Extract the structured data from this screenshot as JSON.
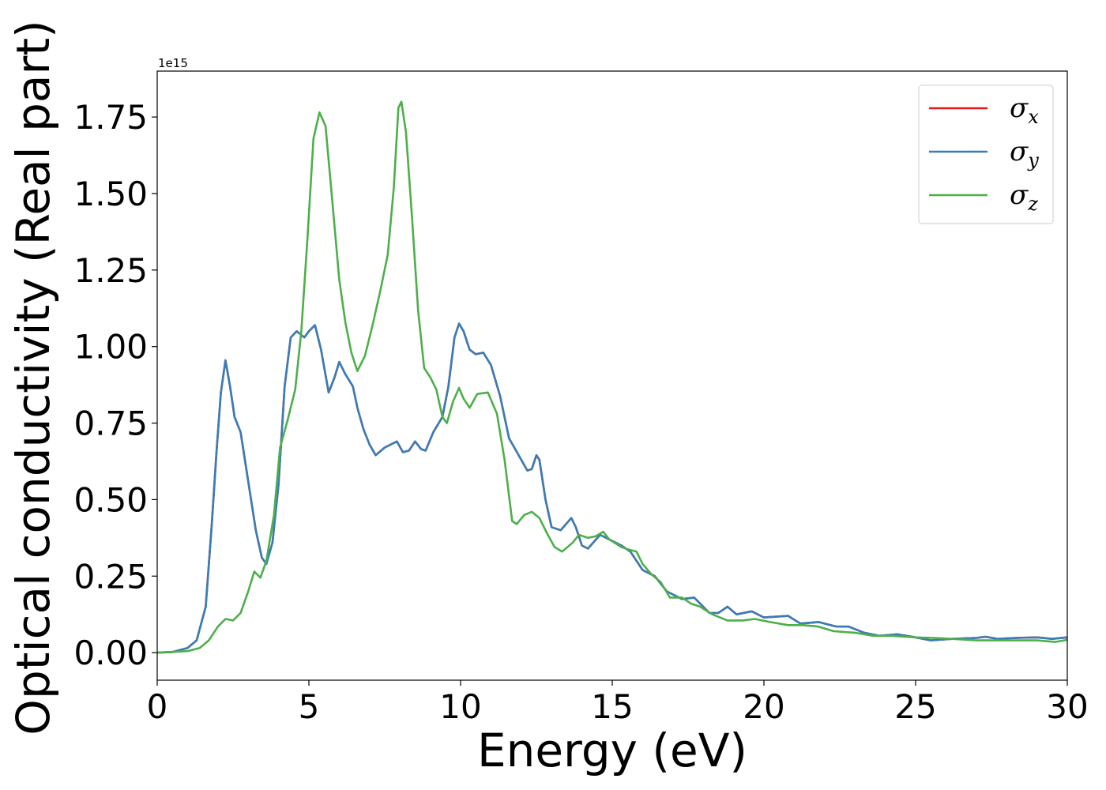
{
  "chart_data": {
    "type": "line",
    "xlabel": "Energy (eV)",
    "ylabel": "Optical conductivity (Real part)",
    "offset_label": "1e15",
    "xlim": [
      0,
      30
    ],
    "ylim": [
      -0.09,
      1.9
    ],
    "x_ticks": [
      0,
      5,
      10,
      15,
      20,
      25,
      30
    ],
    "x_tick_labels": [
      "0",
      "5",
      "10",
      "15",
      "20",
      "25",
      "30"
    ],
    "y_ticks": [
      0.0,
      0.25,
      0.5,
      0.75,
      1.0,
      1.25,
      1.5,
      1.75
    ],
    "y_tick_labels": [
      "0.00",
      "0.25",
      "0.50",
      "0.75",
      "1.00",
      "1.25",
      "1.50",
      "1.75"
    ],
    "grid": false,
    "legend_position": "top-right",
    "series": [
      {
        "name": "σx",
        "symbol": "σ",
        "subscript": "x",
        "color": "#e41a1c",
        "points": [
          [
            0,
            0
          ],
          [
            0.5,
            0.002
          ],
          [
            1.0,
            0.015
          ],
          [
            1.3,
            0.04
          ],
          [
            1.6,
            0.15
          ],
          [
            1.8,
            0.42
          ],
          [
            1.95,
            0.65
          ],
          [
            2.1,
            0.85
          ],
          [
            2.25,
            0.955
          ],
          [
            2.4,
            0.87
          ],
          [
            2.55,
            0.77
          ],
          [
            2.75,
            0.72
          ],
          [
            3.0,
            0.56
          ],
          [
            3.25,
            0.4
          ],
          [
            3.45,
            0.31
          ],
          [
            3.6,
            0.29
          ],
          [
            3.8,
            0.36
          ],
          [
            4.0,
            0.55
          ],
          [
            4.2,
            0.87
          ],
          [
            4.4,
            1.03
          ],
          [
            4.6,
            1.05
          ],
          [
            4.85,
            1.03
          ],
          [
            5.0,
            1.05
          ],
          [
            5.2,
            1.07
          ],
          [
            5.4,
            0.99
          ],
          [
            5.65,
            0.85
          ],
          [
            5.85,
            0.9
          ],
          [
            6.0,
            0.95
          ],
          [
            6.2,
            0.91
          ],
          [
            6.45,
            0.87
          ],
          [
            6.6,
            0.8
          ],
          [
            6.8,
            0.73
          ],
          [
            7.0,
            0.68
          ],
          [
            7.2,
            0.645
          ],
          [
            7.5,
            0.67
          ],
          [
            7.9,
            0.69
          ],
          [
            8.1,
            0.655
          ],
          [
            8.3,
            0.66
          ],
          [
            8.5,
            0.69
          ],
          [
            8.7,
            0.665
          ],
          [
            8.85,
            0.66
          ],
          [
            9.1,
            0.72
          ],
          [
            9.4,
            0.77
          ],
          [
            9.6,
            0.87
          ],
          [
            9.8,
            1.03
          ],
          [
            9.95,
            1.075
          ],
          [
            10.1,
            1.05
          ],
          [
            10.3,
            0.99
          ],
          [
            10.5,
            0.975
          ],
          [
            10.75,
            0.98
          ],
          [
            11.0,
            0.94
          ],
          [
            11.3,
            0.84
          ],
          [
            11.6,
            0.7
          ],
          [
            12.0,
            0.63
          ],
          [
            12.2,
            0.595
          ],
          [
            12.35,
            0.6
          ],
          [
            12.5,
            0.645
          ],
          [
            12.6,
            0.63
          ],
          [
            12.8,
            0.5
          ],
          [
            13.0,
            0.41
          ],
          [
            13.3,
            0.4
          ],
          [
            13.65,
            0.44
          ],
          [
            13.8,
            0.41
          ],
          [
            14.0,
            0.35
          ],
          [
            14.2,
            0.34
          ],
          [
            14.6,
            0.385
          ],
          [
            14.9,
            0.37
          ],
          [
            15.3,
            0.35
          ],
          [
            15.6,
            0.33
          ],
          [
            16.0,
            0.27
          ],
          [
            16.4,
            0.25
          ],
          [
            16.8,
            0.2
          ],
          [
            17.3,
            0.175
          ],
          [
            17.7,
            0.18
          ],
          [
            18.2,
            0.13
          ],
          [
            18.5,
            0.13
          ],
          [
            18.8,
            0.15
          ],
          [
            19.1,
            0.125
          ],
          [
            19.6,
            0.135
          ],
          [
            20.0,
            0.115
          ],
          [
            20.8,
            0.12
          ],
          [
            21.2,
            0.095
          ],
          [
            21.8,
            0.1
          ],
          [
            22.4,
            0.085
          ],
          [
            22.8,
            0.085
          ],
          [
            23.3,
            0.065
          ],
          [
            23.8,
            0.055
          ],
          [
            24.4,
            0.06
          ],
          [
            25.0,
            0.05
          ],
          [
            25.5,
            0.04
          ],
          [
            26.2,
            0.045
          ],
          [
            27.0,
            0.048
          ],
          [
            27.3,
            0.052
          ],
          [
            27.7,
            0.045
          ],
          [
            28.3,
            0.048
          ],
          [
            29.0,
            0.05
          ],
          [
            29.5,
            0.045
          ],
          [
            30.0,
            0.05
          ]
        ]
      },
      {
        "name": "σy",
        "symbol": "σ",
        "subscript": "y",
        "color": "#377eb8",
        "points": [
          [
            0,
            0
          ],
          [
            0.5,
            0.002
          ],
          [
            1.0,
            0.015
          ],
          [
            1.3,
            0.04
          ],
          [
            1.6,
            0.15
          ],
          [
            1.8,
            0.42
          ],
          [
            1.95,
            0.65
          ],
          [
            2.1,
            0.85
          ],
          [
            2.25,
            0.955
          ],
          [
            2.4,
            0.87
          ],
          [
            2.55,
            0.77
          ],
          [
            2.75,
            0.72
          ],
          [
            3.0,
            0.56
          ],
          [
            3.25,
            0.4
          ],
          [
            3.45,
            0.31
          ],
          [
            3.6,
            0.29
          ],
          [
            3.8,
            0.36
          ],
          [
            4.0,
            0.55
          ],
          [
            4.2,
            0.87
          ],
          [
            4.4,
            1.03
          ],
          [
            4.6,
            1.05
          ],
          [
            4.85,
            1.03
          ],
          [
            5.0,
            1.05
          ],
          [
            5.2,
            1.07
          ],
          [
            5.4,
            0.99
          ],
          [
            5.65,
            0.85
          ],
          [
            5.85,
            0.9
          ],
          [
            6.0,
            0.95
          ],
          [
            6.2,
            0.91
          ],
          [
            6.45,
            0.87
          ],
          [
            6.6,
            0.8
          ],
          [
            6.8,
            0.73
          ],
          [
            7.0,
            0.68
          ],
          [
            7.2,
            0.645
          ],
          [
            7.5,
            0.67
          ],
          [
            7.9,
            0.69
          ],
          [
            8.1,
            0.655
          ],
          [
            8.3,
            0.66
          ],
          [
            8.5,
            0.69
          ],
          [
            8.7,
            0.665
          ],
          [
            8.85,
            0.66
          ],
          [
            9.1,
            0.72
          ],
          [
            9.4,
            0.77
          ],
          [
            9.6,
            0.87
          ],
          [
            9.8,
            1.03
          ],
          [
            9.95,
            1.075
          ],
          [
            10.1,
            1.05
          ],
          [
            10.3,
            0.99
          ],
          [
            10.5,
            0.975
          ],
          [
            10.75,
            0.98
          ],
          [
            11.0,
            0.94
          ],
          [
            11.3,
            0.84
          ],
          [
            11.6,
            0.7
          ],
          [
            12.0,
            0.63
          ],
          [
            12.2,
            0.595
          ],
          [
            12.35,
            0.6
          ],
          [
            12.5,
            0.645
          ],
          [
            12.6,
            0.63
          ],
          [
            12.8,
            0.5
          ],
          [
            13.0,
            0.41
          ],
          [
            13.3,
            0.4
          ],
          [
            13.65,
            0.44
          ],
          [
            13.8,
            0.41
          ],
          [
            14.0,
            0.35
          ],
          [
            14.2,
            0.34
          ],
          [
            14.6,
            0.385
          ],
          [
            14.9,
            0.37
          ],
          [
            15.3,
            0.35
          ],
          [
            15.6,
            0.33
          ],
          [
            16.0,
            0.27
          ],
          [
            16.4,
            0.25
          ],
          [
            16.8,
            0.2
          ],
          [
            17.3,
            0.175
          ],
          [
            17.7,
            0.18
          ],
          [
            18.2,
            0.13
          ],
          [
            18.5,
            0.13
          ],
          [
            18.8,
            0.15
          ],
          [
            19.1,
            0.125
          ],
          [
            19.6,
            0.135
          ],
          [
            20.0,
            0.115
          ],
          [
            20.8,
            0.12
          ],
          [
            21.2,
            0.095
          ],
          [
            21.8,
            0.1
          ],
          [
            22.4,
            0.085
          ],
          [
            22.8,
            0.085
          ],
          [
            23.3,
            0.065
          ],
          [
            23.8,
            0.055
          ],
          [
            24.4,
            0.06
          ],
          [
            25.0,
            0.05
          ],
          [
            25.5,
            0.04
          ],
          [
            26.2,
            0.045
          ],
          [
            27.0,
            0.048
          ],
          [
            27.3,
            0.052
          ],
          [
            27.7,
            0.045
          ],
          [
            28.3,
            0.048
          ],
          [
            29.0,
            0.05
          ],
          [
            29.5,
            0.045
          ],
          [
            30.0,
            0.05
          ]
        ]
      },
      {
        "name": "σz",
        "symbol": "σ",
        "subscript": "z",
        "color": "#4daf4a",
        "points": [
          [
            0,
            0
          ],
          [
            1.0,
            0.005
          ],
          [
            1.4,
            0.015
          ],
          [
            1.7,
            0.04
          ],
          [
            2.0,
            0.085
          ],
          [
            2.25,
            0.11
          ],
          [
            2.5,
            0.105
          ],
          [
            2.75,
            0.13
          ],
          [
            3.0,
            0.2
          ],
          [
            3.2,
            0.265
          ],
          [
            3.4,
            0.245
          ],
          [
            3.6,
            0.3
          ],
          [
            3.85,
            0.45
          ],
          [
            4.05,
            0.67
          ],
          [
            4.3,
            0.76
          ],
          [
            4.55,
            0.86
          ],
          [
            4.75,
            1.05
          ],
          [
            4.95,
            1.35
          ],
          [
            5.15,
            1.68
          ],
          [
            5.35,
            1.765
          ],
          [
            5.55,
            1.72
          ],
          [
            5.75,
            1.5
          ],
          [
            6.0,
            1.22
          ],
          [
            6.2,
            1.08
          ],
          [
            6.4,
            0.98
          ],
          [
            6.6,
            0.92
          ],
          [
            6.85,
            0.97
          ],
          [
            7.1,
            1.07
          ],
          [
            7.35,
            1.18
          ],
          [
            7.6,
            1.3
          ],
          [
            7.8,
            1.52
          ],
          [
            7.95,
            1.78
          ],
          [
            8.05,
            1.8
          ],
          [
            8.2,
            1.7
          ],
          [
            8.4,
            1.42
          ],
          [
            8.6,
            1.12
          ],
          [
            8.8,
            0.93
          ],
          [
            9.0,
            0.9
          ],
          [
            9.2,
            0.86
          ],
          [
            9.4,
            0.77
          ],
          [
            9.55,
            0.75
          ],
          [
            9.75,
            0.82
          ],
          [
            9.95,
            0.865
          ],
          [
            10.1,
            0.83
          ],
          [
            10.3,
            0.8
          ],
          [
            10.55,
            0.845
          ],
          [
            10.9,
            0.85
          ],
          [
            11.2,
            0.78
          ],
          [
            11.45,
            0.63
          ],
          [
            11.7,
            0.43
          ],
          [
            11.85,
            0.42
          ],
          [
            12.1,
            0.45
          ],
          [
            12.35,
            0.46
          ],
          [
            12.6,
            0.44
          ],
          [
            12.85,
            0.39
          ],
          [
            13.1,
            0.345
          ],
          [
            13.35,
            0.33
          ],
          [
            13.7,
            0.36
          ],
          [
            13.9,
            0.385
          ],
          [
            14.2,
            0.375
          ],
          [
            14.45,
            0.38
          ],
          [
            14.7,
            0.395
          ],
          [
            14.9,
            0.37
          ],
          [
            15.3,
            0.345
          ],
          [
            15.6,
            0.335
          ],
          [
            15.8,
            0.33
          ],
          [
            16.0,
            0.29
          ],
          [
            16.3,
            0.255
          ],
          [
            16.6,
            0.23
          ],
          [
            16.9,
            0.18
          ],
          [
            17.3,
            0.18
          ],
          [
            17.6,
            0.16
          ],
          [
            17.9,
            0.15
          ],
          [
            18.3,
            0.125
          ],
          [
            18.8,
            0.105
          ],
          [
            19.3,
            0.105
          ],
          [
            19.7,
            0.11
          ],
          [
            20.2,
            0.1
          ],
          [
            20.8,
            0.09
          ],
          [
            21.3,
            0.09
          ],
          [
            21.8,
            0.085
          ],
          [
            22.3,
            0.07
          ],
          [
            23.0,
            0.065
          ],
          [
            23.6,
            0.055
          ],
          [
            24.2,
            0.055
          ],
          [
            25.0,
            0.05
          ],
          [
            25.6,
            0.048
          ],
          [
            26.2,
            0.045
          ],
          [
            27.0,
            0.04
          ],
          [
            28.0,
            0.04
          ],
          [
            29.0,
            0.04
          ],
          [
            29.6,
            0.035
          ],
          [
            30.0,
            0.042
          ]
        ]
      }
    ]
  }
}
